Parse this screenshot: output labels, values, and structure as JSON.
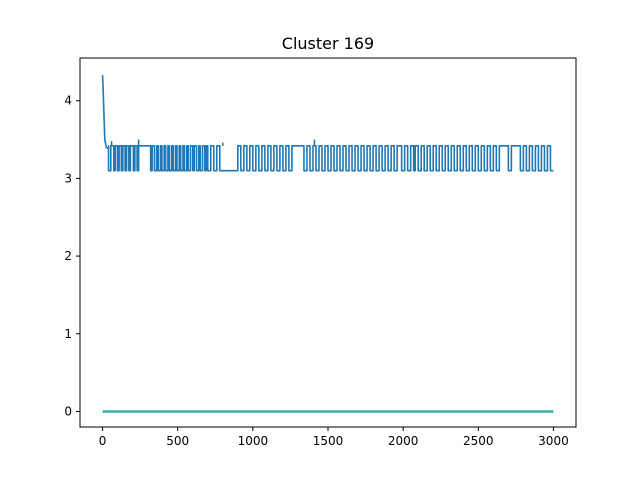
{
  "chart_data": {
    "type": "line",
    "title": "Cluster 169",
    "xlabel": "",
    "ylabel": "",
    "xlim": [
      -150,
      3150
    ],
    "ylim": [
      -0.2,
      4.55
    ],
    "x_ticks": [
      0,
      500,
      1000,
      1500,
      2000,
      2500,
      3000
    ],
    "y_ticks": [
      0,
      1,
      2,
      3,
      4
    ],
    "grid": false,
    "legend": "none",
    "series": [
      {
        "color": "#1f77b4",
        "decay": [
          [
            0,
            4.33
          ],
          [
            3,
            4.2
          ],
          [
            8,
            3.9
          ],
          [
            15,
            3.5
          ],
          [
            25,
            3.4
          ],
          [
            40,
            3.38
          ]
        ],
        "start_x": 40,
        "end_x": 3000,
        "high": 3.42,
        "low": 3.1,
        "switch_points": [
          40,
          55,
          75,
          85,
          100,
          110,
          125,
          135,
          150,
          160,
          175,
          185,
          205,
          215,
          230,
          240,
          320,
          330,
          345,
          360,
          370,
          385,
          395,
          410,
          420,
          435,
          445,
          460,
          470,
          485,
          495,
          510,
          520,
          535,
          545,
          560,
          570,
          585,
          600,
          610,
          625,
          640,
          650,
          665,
          680,
          690,
          700,
          720,
          740,
          760,
          780,
          900,
          920,
          940,
          960,
          980,
          1000,
          1020,
          1040,
          1060,
          1080,
          1100,
          1120,
          1140,
          1160,
          1180,
          1200,
          1220,
          1240,
          1260,
          1340,
          1360,
          1380,
          1400,
          1420,
          1440,
          1460,
          1480,
          1500,
          1520,
          1540,
          1560,
          1580,
          1600,
          1620,
          1640,
          1660,
          1680,
          1700,
          1720,
          1740,
          1760,
          1780,
          1800,
          1820,
          1840,
          1860,
          1880,
          1900,
          1920,
          1940,
          1960,
          1990,
          2010,
          2030,
          2050,
          2070,
          2080,
          2100,
          2120,
          2140,
          2160,
          2180,
          2200,
          2220,
          2240,
          2260,
          2280,
          2300,
          2320,
          2340,
          2360,
          2380,
          2400,
          2420,
          2440,
          2460,
          2480,
          2500,
          2520,
          2540,
          2560,
          2580,
          2600,
          2620,
          2640,
          2700,
          2720,
          2780,
          2800,
          2820,
          2840,
          2860,
          2880,
          2900,
          2920,
          2940,
          2960,
          2980,
          3000
        ],
        "spikes": [
          [
            240,
            3.5
          ],
          [
            1410,
            3.5
          ],
          [
            60,
            3.48
          ],
          [
            800,
            3.46
          ]
        ]
      },
      {
        "color": "#3aaea0",
        "x": [
          0,
          3000
        ],
        "values": [
          0,
          0
        ]
      }
    ]
  }
}
